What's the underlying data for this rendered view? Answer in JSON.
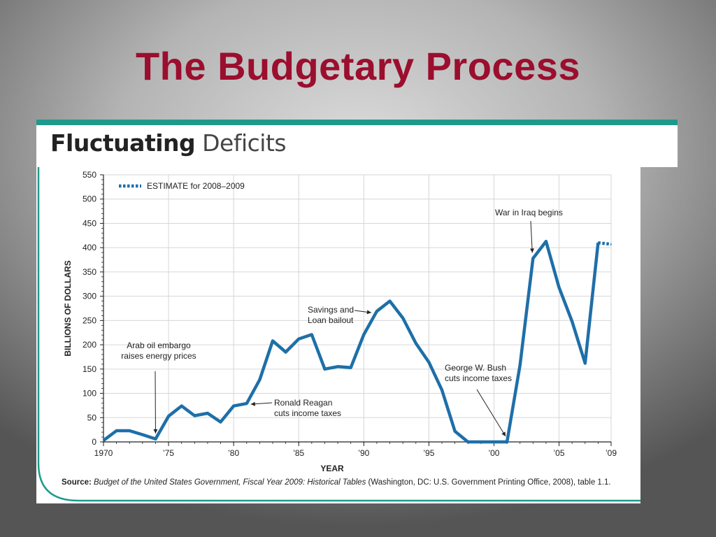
{
  "slide": {
    "title": "The Budgetary Process"
  },
  "figure": {
    "title_bold": "Fluctuating",
    "title_light": " Deficits",
    "source_label": "Source: ",
    "source_italic": "Budget of the United States Government, Fiscal Year 2009: Historical Tables",
    "source_rest": " (Washington, DC: U.S. Government Printing Office, 2008), table 1.1."
  },
  "colors": {
    "title_red": "#9b0e2e",
    "accent_teal": "#1e9a8c",
    "line_blue": "#1e6fa8"
  },
  "chart_data": {
    "type": "line",
    "title": "Fluctuating Deficits",
    "xlabel": "YEAR",
    "ylabel": "BILLIONS OF DOLLARS",
    "xlim": [
      1970,
      2009
    ],
    "ylim": [
      0,
      550
    ],
    "grid": true,
    "x_tick_values": [
      1970,
      1975,
      1980,
      1985,
      1990,
      1995,
      2000,
      2005,
      2009
    ],
    "x_tick_labels": [
      "1970",
      "’75",
      "’80",
      "’85",
      "’90",
      "’95",
      "’00",
      "’05",
      "’09"
    ],
    "y_tick_values": [
      0,
      50,
      100,
      150,
      200,
      250,
      300,
      350,
      400,
      450,
      500,
      550
    ],
    "y_tick_labels": [
      "0",
      "50",
      "100",
      "150",
      "200",
      "250",
      "300",
      "350",
      "400",
      "450",
      "500",
      "550"
    ],
    "legend": {
      "label": "ESTIMATE for 2008–2009",
      "position": "top-left",
      "style": "dotted"
    },
    "series": [
      {
        "style": "solid",
        "x": [
          1970,
          1971,
          1972,
          1973,
          1974,
          1975,
          1976,
          1977,
          1978,
          1979,
          1980,
          1981,
          1982,
          1983,
          1984,
          1985,
          1986,
          1987,
          1988,
          1989,
          1990,
          1991,
          1992,
          1993,
          1994,
          1995,
          1996,
          1997,
          1998,
          1999,
          2000,
          2001,
          2002,
          2003,
          2004,
          2005,
          2006,
          2007,
          2008
        ],
        "y": [
          3,
          23,
          23,
          15,
          6,
          53,
          74,
          54,
          59,
          41,
          74,
          79,
          128,
          208,
          185,
          212,
          221,
          150,
          155,
          153,
          221,
          269,
          290,
          255,
          203,
          164,
          107,
          22,
          0,
          0,
          0,
          0,
          158,
          378,
          413,
          318,
          248,
          162,
          410
        ]
      },
      {
        "style": "dotted",
        "x": [
          2008,
          2009
        ],
        "y": [
          410,
          407
        ]
      }
    ],
    "annotations": [
      {
        "lines": [
          "Arab oil embargo",
          "raises energy prices"
        ],
        "x": 1974,
        "y": 6
      },
      {
        "lines": [
          "Ronald Reagan",
          "cuts income taxes"
        ],
        "x": 1981,
        "y": 79
      },
      {
        "lines": [
          "Savings and",
          "Loan bailout"
        ],
        "x": 1991,
        "y": 269
      },
      {
        "lines": [
          "George W. Bush",
          "cuts income taxes"
        ],
        "x": 2001,
        "y": 0
      },
      {
        "lines": [
          "War in Iraq begins"
        ],
        "x": 2003,
        "y": 378
      }
    ]
  }
}
